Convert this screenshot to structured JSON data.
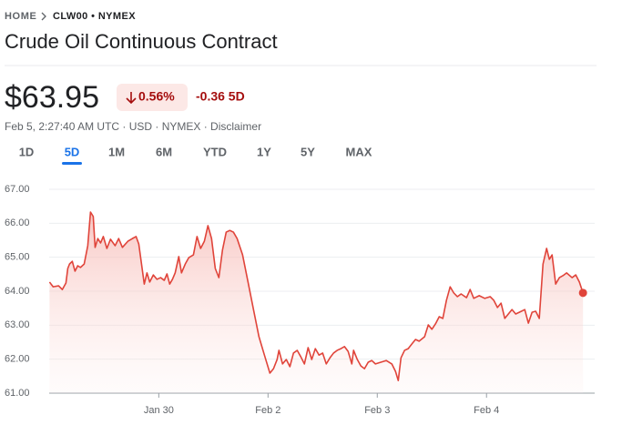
{
  "breadcrumb": [
    "HOME",
    "CLW00 • NYMEX"
  ],
  "title": "Crude Oil Continuous Contract",
  "price": "$63.95",
  "change_percent": "0.56%",
  "change_value": "-0.36 5D",
  "info": "Feb 5, 2:27:40 AM UTC · USD · NYMEX · Disclaimer",
  "tabs": [
    "1D",
    "5D",
    "1M",
    "6M",
    "YTD",
    "1Y",
    "5Y",
    "MAX"
  ],
  "selected_tab": 1,
  "chart_data": {
    "type": "line",
    "x": [
      0,
      0.033,
      0.083,
      0.117,
      0.15,
      0.167,
      0.183,
      0.208,
      0.233,
      0.258,
      0.283,
      0.317,
      0.35,
      0.375,
      0.4,
      0.417,
      0.442,
      0.467,
      0.492,
      0.525,
      0.558,
      0.6,
      0.633,
      0.667,
      0.717,
      0.758,
      0.792,
      0.817,
      0.842,
      0.867,
      0.892,
      0.917,
      0.95,
      0.983,
      1.017,
      1.05,
      1.075,
      1.1,
      1.125,
      1.15,
      1.183,
      1.208,
      1.242,
      1.275,
      1.317,
      1.35,
      1.383,
      1.417,
      1.45,
      1.483,
      1.517,
      1.55,
      1.583,
      1.617,
      1.65,
      1.683,
      1.717,
      1.767,
      1.817,
      1.867,
      1.917,
      1.967,
      2.017,
      2.05,
      2.083,
      2.1,
      2.133,
      2.167,
      2.2,
      2.233,
      2.267,
      2.3,
      2.333,
      2.367,
      2.4,
      2.433,
      2.467,
      2.5,
      2.533,
      2.567,
      2.6,
      2.633,
      2.667,
      2.7,
      2.733,
      2.767,
      2.783,
      2.817,
      2.85,
      2.883,
      2.917,
      2.95,
      2.983,
      3.033,
      3.083,
      3.133,
      3.167,
      3.192,
      3.217,
      3.25,
      3.283,
      3.317,
      3.35,
      3.383,
      3.433,
      3.467,
      3.5,
      3.533,
      3.567,
      3.6,
      3.633,
      3.667,
      3.7,
      3.733,
      3.767,
      3.817,
      3.85,
      3.883,
      3.933,
      3.983,
      4.033,
      4.067,
      4.1,
      4.133,
      4.167,
      4.2,
      4.233,
      4.267,
      4.3,
      4.35,
      4.383,
      4.417,
      4.45,
      4.483,
      4.517,
      4.55,
      4.575,
      4.6,
      4.633,
      4.667,
      4.7,
      4.733,
      4.783,
      4.817,
      4.85,
      4.883
    ],
    "series": [
      {
        "color": "#e0443a",
        "values": [
          64.27,
          64.13,
          64.16,
          64.05,
          64.24,
          64.67,
          64.8,
          64.88,
          64.59,
          64.75,
          64.7,
          64.8,
          65.34,
          66.33,
          66.2,
          65.29,
          65.55,
          65.42,
          65.61,
          65.26,
          65.53,
          65.34,
          65.55,
          65.29,
          65.47,
          65.55,
          65.61,
          65.39,
          64.8,
          64.21,
          64.54,
          64.27,
          64.48,
          64.35,
          64.4,
          64.32,
          64.51,
          64.21,
          64.35,
          64.54,
          65.02,
          64.54,
          64.8,
          64.99,
          65.07,
          65.61,
          65.26,
          65.47,
          65.93,
          65.55,
          64.67,
          64.4,
          65.21,
          65.74,
          65.79,
          65.74,
          65.55,
          65.07,
          64.27,
          63.46,
          62.66,
          62.12,
          61.59,
          61.72,
          61.99,
          62.26,
          61.86,
          61.99,
          61.78,
          62.18,
          62.26,
          62.07,
          61.86,
          62.34,
          61.99,
          62.31,
          62.12,
          62.18,
          61.86,
          62.04,
          62.18,
          62.26,
          62.31,
          62.37,
          62.23,
          61.86,
          62.26,
          61.99,
          61.8,
          61.72,
          61.91,
          61.96,
          61.86,
          61.91,
          61.96,
          61.86,
          61.64,
          61.37,
          62.04,
          62.26,
          62.31,
          62.45,
          62.58,
          62.53,
          62.66,
          63.01,
          62.88,
          63.04,
          63.25,
          63.2,
          63.73,
          64.13,
          63.95,
          63.84,
          63.92,
          63.81,
          64.05,
          63.79,
          63.87,
          63.79,
          63.84,
          63.73,
          63.52,
          63.65,
          63.2,
          63.33,
          63.46,
          63.33,
          63.38,
          63.46,
          63.06,
          63.38,
          63.41,
          63.2,
          64.8,
          65.26,
          64.94,
          65.07,
          64.21,
          64.4,
          64.46,
          64.54,
          64.4,
          64.48,
          64.27,
          63.95
        ]
      }
    ],
    "xlim": [
      -0.12,
      4.99
    ],
    "xticks": [
      {
        "value": 1,
        "label": "Jan 30"
      },
      {
        "value": 2,
        "label": "Feb 2"
      },
      {
        "value": 3,
        "label": "Feb 3"
      },
      {
        "value": 4,
        "label": "Feb 4"
      }
    ],
    "ylim": [
      61,
      67
    ],
    "yticks": [
      {
        "value": 61,
        "label": "61.00"
      },
      {
        "value": 62,
        "label": "62.00"
      },
      {
        "value": 63,
        "label": "63.00"
      },
      {
        "value": 64,
        "label": "64.00"
      },
      {
        "value": 65,
        "label": "65.00"
      },
      {
        "value": 66,
        "label": "66.00"
      },
      {
        "value": 67,
        "label": "67.00"
      }
    ],
    "grid": true
  }
}
